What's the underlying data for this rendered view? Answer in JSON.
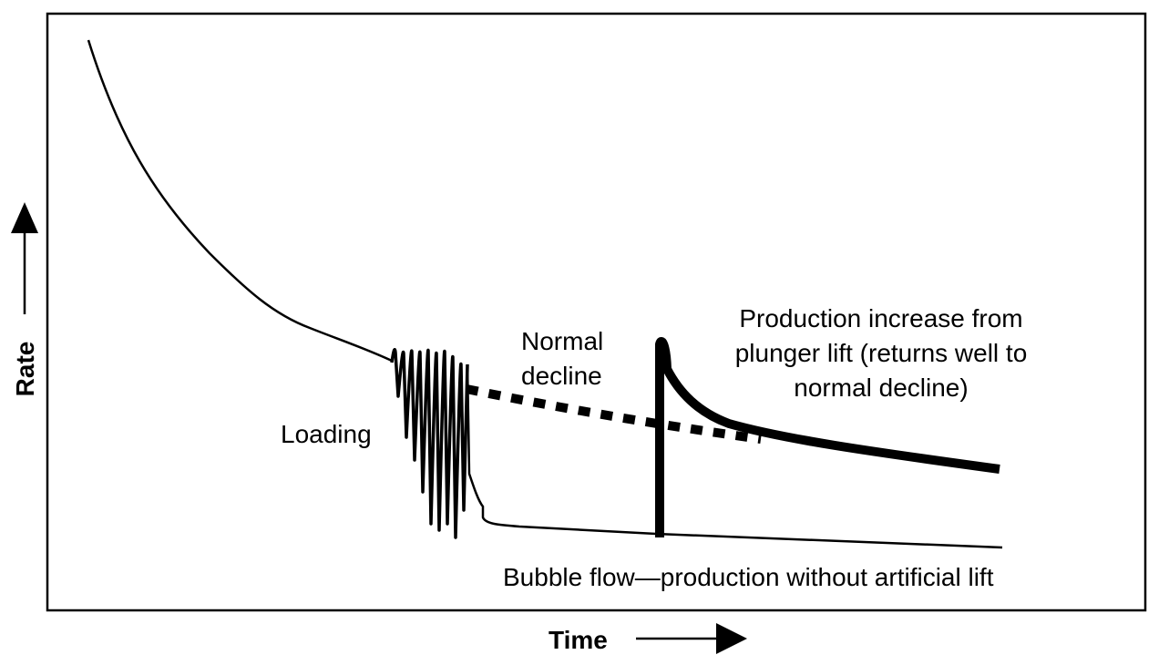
{
  "axes": {
    "x_label": "Time",
    "y_label": "Rate"
  },
  "annotations": {
    "loading": "Loading",
    "normal_decline": [
      "Normal",
      "decline"
    ],
    "plunger": [
      "Production increase from",
      "plunger lift (returns well to",
      "normal decline)"
    ],
    "bubble_flow": "Bubble flow—production without artificial lift"
  },
  "colors": {
    "ink": "#000000",
    "background": "#ffffff"
  }
}
